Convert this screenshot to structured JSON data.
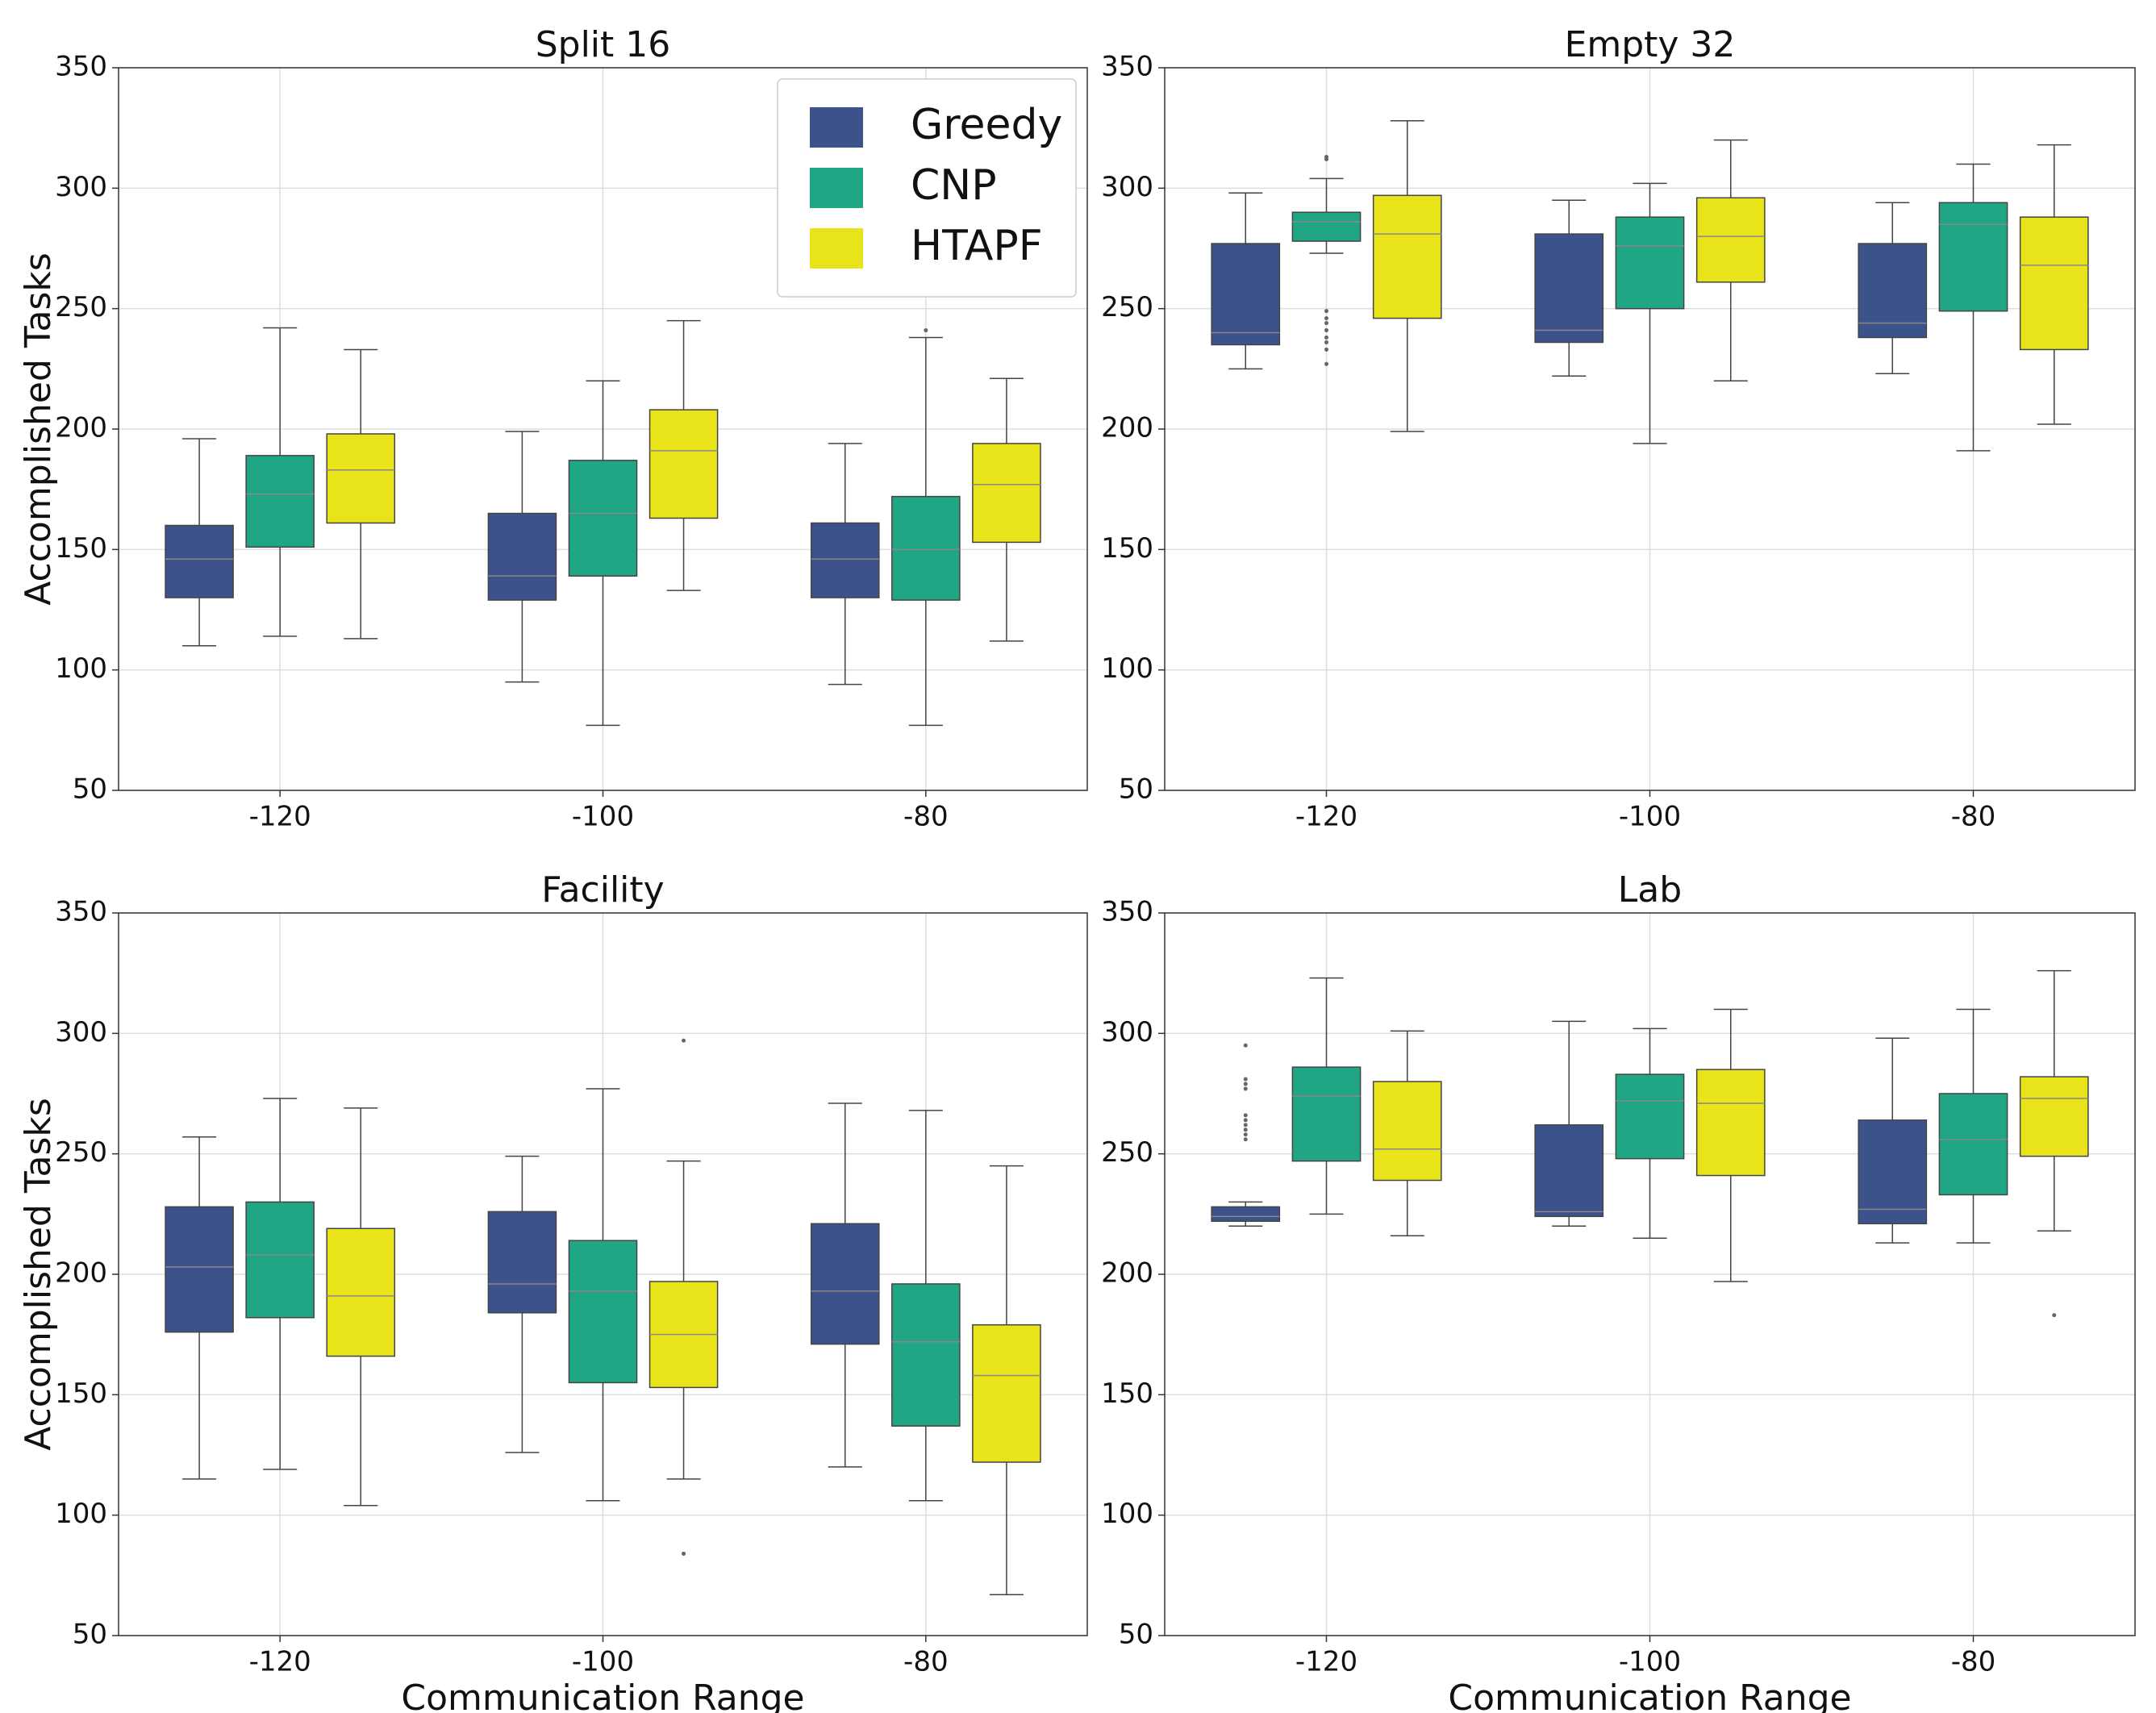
{
  "chart_data": [
    {
      "type": "box",
      "title": "Split 16",
      "ylabel": "Accomplished Tasks",
      "categories": [
        "-120",
        "-100",
        "-80"
      ],
      "ylim": [
        50,
        350
      ],
      "yticks": [
        50,
        100,
        150,
        200,
        250,
        300,
        350
      ],
      "grid": true,
      "legend": "upper right",
      "series": [
        {
          "name": "Greedy",
          "color": "#3b528b",
          "stats": [
            {
              "whislo": 110,
              "q1": 130,
              "med": 146,
              "q3": 160,
              "whishi": 196
            },
            {
              "whislo": 95,
              "q1": 129,
              "med": 139,
              "q3": 165,
              "whishi": 199
            },
            {
              "whislo": 94,
              "q1": 130,
              "med": 146,
              "q3": 161,
              "whishi": 194
            }
          ]
        },
        {
          "name": "CNP",
          "color": "#21a685",
          "stats": [
            {
              "whislo": 114,
              "q1": 151,
              "med": 173,
              "q3": 189,
              "whishi": 242
            },
            {
              "whislo": 77,
              "q1": 139,
              "med": 165,
              "q3": 187,
              "whishi": 220
            },
            {
              "whislo": 77,
              "q1": 129,
              "med": 150,
              "q3": 172,
              "whishi": 238,
              "fliers": [
                241
              ]
            }
          ]
        },
        {
          "name": "HTAPF",
          "color": "#e9e41a",
          "stats": [
            {
              "whislo": 113,
              "q1": 161,
              "med": 183,
              "q3": 198,
              "whishi": 233
            },
            {
              "whislo": 133,
              "q1": 163,
              "med": 191,
              "q3": 208,
              "whishi": 245
            },
            {
              "whislo": 112,
              "q1": 153,
              "med": 177,
              "q3": 194,
              "whishi": 221
            }
          ]
        }
      ]
    },
    {
      "type": "box",
      "title": "Empty 32",
      "categories": [
        "-120",
        "-100",
        "-80"
      ],
      "ylim": [
        50,
        350
      ],
      "yticks": [
        50,
        100,
        150,
        200,
        250,
        300,
        350
      ],
      "grid": true,
      "series": [
        {
          "name": "Greedy",
          "color": "#3b528b",
          "stats": [
            {
              "whislo": 225,
              "q1": 235,
              "med": 240,
              "q3": 277,
              "whishi": 298
            },
            {
              "whislo": 222,
              "q1": 236,
              "med": 241,
              "q3": 281,
              "whishi": 295
            },
            {
              "whislo": 223,
              "q1": 238,
              "med": 244,
              "q3": 277,
              "whishi": 294
            }
          ]
        },
        {
          "name": "CNP",
          "color": "#21a685",
          "stats": [
            {
              "whislo": 273,
              "q1": 278,
              "med": 286,
              "q3": 290,
              "whishi": 304,
              "fliers": [
                313,
                312,
                249,
                246,
                244,
                241,
                238,
                236,
                233,
                227
              ]
            },
            {
              "whislo": 194,
              "q1": 250,
              "med": 276,
              "q3": 288,
              "whishi": 302
            },
            {
              "whislo": 191,
              "q1": 249,
              "med": 285,
              "q3": 294,
              "whishi": 310
            }
          ]
        },
        {
          "name": "HTAPF",
          "color": "#e9e41a",
          "stats": [
            {
              "whislo": 199,
              "q1": 246,
              "med": 281,
              "q3": 297,
              "whishi": 328
            },
            {
              "whislo": 220,
              "q1": 261,
              "med": 280,
              "q3": 296,
              "whishi": 320
            },
            {
              "whislo": 202,
              "q1": 233,
              "med": 268,
              "q3": 288,
              "whishi": 318
            }
          ]
        }
      ]
    },
    {
      "type": "box",
      "title": "Facility",
      "xlabel": "Communication Range",
      "ylabel": "Accomplished Tasks",
      "categories": [
        "-120",
        "-100",
        "-80"
      ],
      "ylim": [
        50,
        350
      ],
      "yticks": [
        50,
        100,
        150,
        200,
        250,
        300,
        350
      ],
      "grid": true,
      "series": [
        {
          "name": "Greedy",
          "color": "#3b528b",
          "stats": [
            {
              "whislo": 115,
              "q1": 176,
              "med": 203,
              "q3": 228,
              "whishi": 257
            },
            {
              "whislo": 126,
              "q1": 184,
              "med": 196,
              "q3": 226,
              "whishi": 249
            },
            {
              "whislo": 120,
              "q1": 171,
              "med": 193,
              "q3": 221,
              "whishi": 271
            }
          ]
        },
        {
          "name": "CNP",
          "color": "#21a685",
          "stats": [
            {
              "whislo": 119,
              "q1": 182,
              "med": 208,
              "q3": 230,
              "whishi": 273
            },
            {
              "whislo": 106,
              "q1": 155,
              "med": 193,
              "q3": 214,
              "whishi": 277
            },
            {
              "whislo": 106,
              "q1": 137,
              "med": 172,
              "q3": 196,
              "whishi": 268
            }
          ]
        },
        {
          "name": "HTAPF",
          "color": "#e9e41a",
          "stats": [
            {
              "whislo": 104,
              "q1": 166,
              "med": 191,
              "q3": 219,
              "whishi": 269
            },
            {
              "whislo": 115,
              "q1": 153,
              "med": 175,
              "q3": 197,
              "whishi": 247,
              "fliers": [
                297,
                84
              ]
            },
            {
              "whislo": 67,
              "q1": 122,
              "med": 158,
              "q3": 179,
              "whishi": 245
            }
          ]
        }
      ]
    },
    {
      "type": "box",
      "title": "Lab",
      "xlabel": "Communication Range",
      "categories": [
        "-120",
        "-100",
        "-80"
      ],
      "ylim": [
        50,
        350
      ],
      "yticks": [
        50,
        100,
        150,
        200,
        250,
        300,
        350
      ],
      "grid": true,
      "series": [
        {
          "name": "Greedy",
          "color": "#3b528b",
          "stats": [
            {
              "whislo": 220,
              "q1": 222,
              "med": 224,
              "q3": 228,
              "whishi": 230,
              "fliers": [
                295,
                281,
                279,
                277,
                266,
                264,
                262,
                260,
                258,
                256
              ]
            },
            {
              "whislo": 220,
              "q1": 224,
              "med": 226,
              "q3": 262,
              "whishi": 305
            },
            {
              "whislo": 213,
              "q1": 221,
              "med": 227,
              "q3": 264,
              "whishi": 298
            }
          ]
        },
        {
          "name": "CNP",
          "color": "#21a685",
          "stats": [
            {
              "whislo": 225,
              "q1": 247,
              "med": 274,
              "q3": 286,
              "whishi": 323
            },
            {
              "whislo": 215,
              "q1": 248,
              "med": 272,
              "q3": 283,
              "whishi": 302
            },
            {
              "whislo": 213,
              "q1": 233,
              "med": 256,
              "q3": 275,
              "whishi": 310
            }
          ]
        },
        {
          "name": "HTAPF",
          "color": "#e9e41a",
          "stats": [
            {
              "whislo": 216,
              "q1": 239,
              "med": 252,
              "q3": 280,
              "whishi": 301
            },
            {
              "whislo": 197,
              "q1": 241,
              "med": 271,
              "q3": 285,
              "whishi": 310
            },
            {
              "whislo": 218,
              "q1": 249,
              "med": 273,
              "q3": 282,
              "whishi": 326,
              "fliers": [
                183
              ]
            }
          ]
        }
      ]
    }
  ]
}
